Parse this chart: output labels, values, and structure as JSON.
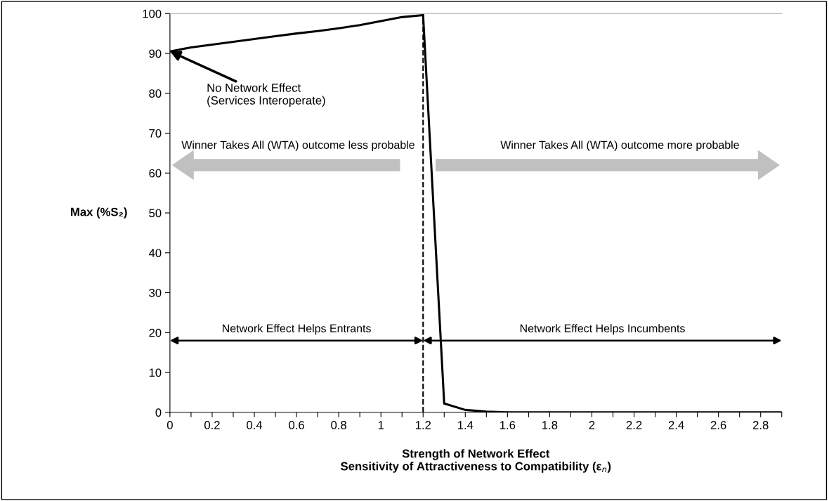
{
  "chart_data": {
    "type": "line",
    "xlabel": "Strength of Network Effect\nSensitivity of Attractiveness to Compatibility (ε$_{n}$)",
    "ylabel": "Max (%S₂)",
    "x": [
      0,
      0.1,
      0.2,
      0.3,
      0.4,
      0.5,
      0.6,
      0.7,
      0.8,
      0.9,
      1.0,
      1.1,
      1.2,
      1.3,
      1.4,
      1.5,
      1.6,
      1.7,
      1.8,
      1.9,
      2.0,
      2.1,
      2.2,
      2.3,
      2.4,
      2.5,
      2.6,
      2.7,
      2.8,
      2.9
    ],
    "series": [
      {
        "color": "#000000",
        "values": [
          90.5,
          91.5,
          92.2,
          92.9,
          93.6,
          94.3,
          95.0,
          95.6,
          96.3,
          97.1,
          98.1,
          99.1,
          99.6,
          2.2,
          0.6,
          0.2,
          0,
          0,
          0,
          0,
          0,
          0,
          0,
          0,
          0,
          0,
          0,
          0,
          0,
          0
        ]
      }
    ],
    "xlim": [
      0,
      2.9
    ],
    "ylim": [
      0,
      100
    ],
    "xticks": [
      0,
      {
        "value": 0.1,
        "label": null
      },
      0.2,
      {
        "value": 0.3,
        "label": null
      },
      0.4,
      {
        "value": 0.5,
        "label": null
      },
      0.6,
      {
        "value": 0.7,
        "label": null
      },
      0.8,
      {
        "value": 0.9,
        "label": null
      },
      1,
      {
        "value": 1.1,
        "label": null
      },
      1.2,
      {
        "value": 1.3,
        "label": null
      },
      1.4,
      {
        "value": 1.5,
        "label": null
      },
      1.6,
      {
        "value": 1.7,
        "label": null
      },
      1.8,
      {
        "value": 1.9,
        "label": null
      },
      2,
      {
        "value": 2.1,
        "label": null
      },
      2.2,
      {
        "value": 2.3,
        "label": null
      },
      2.4,
      {
        "value": 2.5,
        "label": null
      },
      2.6,
      {
        "value": 2.7,
        "label": null
      },
      2.8,
      {
        "value": 2.9,
        "label": null
      }
    ],
    "yticks": [
      0,
      10,
      20,
      30,
      40,
      50,
      60,
      70,
      80,
      90,
      100
    ],
    "ref_lines": [
      {
        "axis": "x",
        "value": 1.2,
        "color": "#000000",
        "line_style": "dashed"
      }
    ],
    "annotations": [
      {
        "text": "No Network Effect\n(Services Interoperate)",
        "x": 0,
        "y": 90.5
      },
      "Winner Takes All (WTA) outcome less probable",
      "Winner Takes All (WTA) outcome more probable",
      "Network Effect Helps Entrants",
      "Network Effect Helps Incumbents"
    ],
    "marker": "none",
    "line_style": "solid",
    "grid": false,
    "legend": false
  }
}
